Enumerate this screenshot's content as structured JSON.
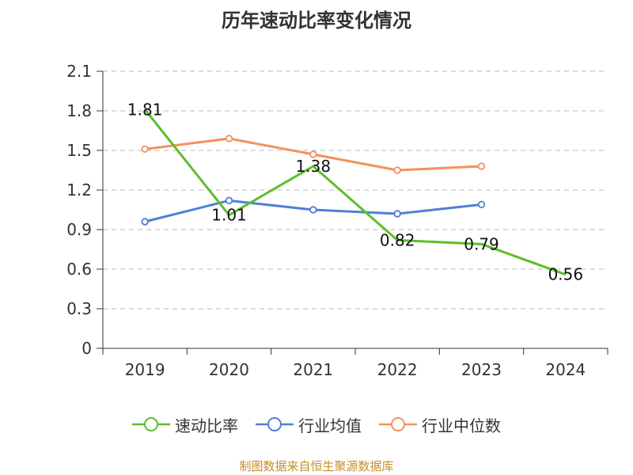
{
  "chart_data": {
    "type": "line",
    "title": "历年速动比率变化情况",
    "categories": [
      "2019",
      "2020",
      "2021",
      "2022",
      "2023",
      "2024"
    ],
    "ylim": [
      0,
      2.1
    ],
    "yticks": [
      "0",
      "0.3",
      "0.6",
      "0.9",
      "1.2",
      "1.5",
      "1.8",
      "2.1"
    ],
    "grid": true,
    "legend_position": "bottom",
    "series": [
      {
        "name": "速动比率",
        "color": "#5bbf2b",
        "values": [
          1.81,
          1.01,
          1.38,
          0.82,
          0.79,
          0.56
        ],
        "labels": [
          "1.81",
          "1.01",
          "1.38",
          "0.82",
          "0.79",
          "0.56"
        ],
        "show_labels": true,
        "markers": false
      },
      {
        "name": "行业均值",
        "color": "#4f7fd6",
        "values": [
          0.96,
          1.12,
          1.05,
          1.02,
          1.09,
          null
        ],
        "show_labels": false,
        "markers": true
      },
      {
        "name": "行业中位数",
        "color": "#f4915c",
        "values": [
          1.51,
          1.59,
          1.47,
          1.35,
          1.38,
          null
        ],
        "show_labels": false,
        "markers": true
      }
    ]
  },
  "source_note": "制图数据来自恒生聚源数据库"
}
